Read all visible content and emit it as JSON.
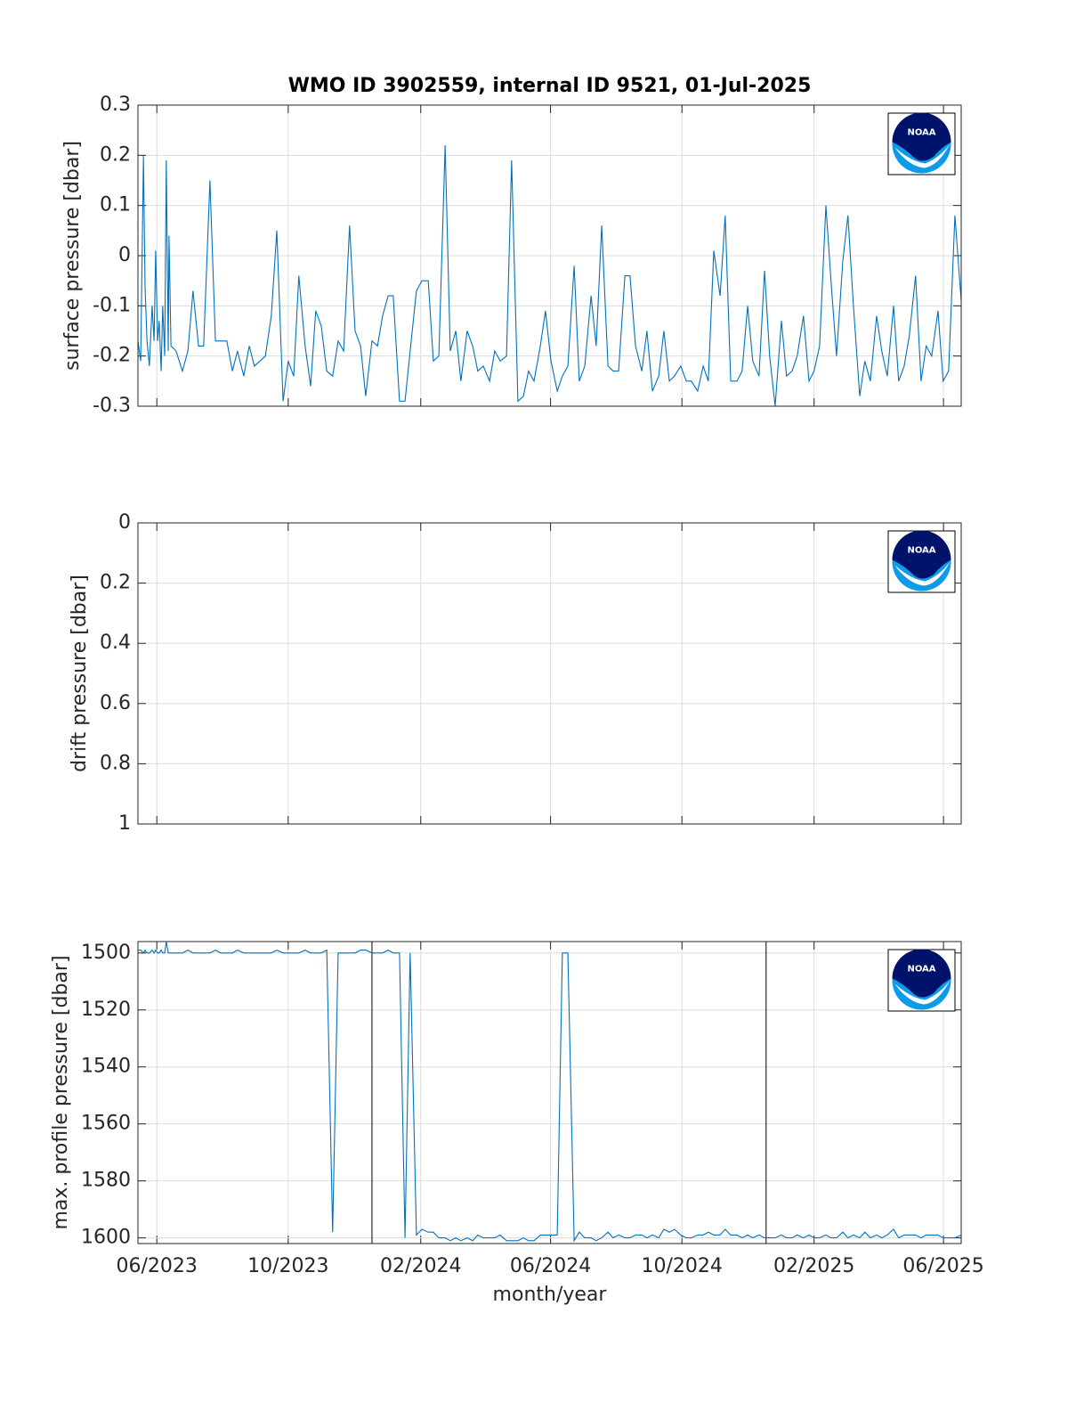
{
  "logo": "NOAA",
  "chart_data": [
    {
      "type": "line",
      "title": "WMO ID 3902559, internal ID 9521, 01-Jul-2025",
      "ylabel": "surface pressure [dbar]",
      "x": [
        2023.366,
        2023.373,
        2023.38,
        2023.384,
        2023.389,
        2023.395,
        2023.402,
        2023.407,
        2023.411,
        2023.416,
        2023.42,
        2023.425,
        2023.429,
        2023.434,
        2023.438,
        2023.443,
        2023.445,
        2023.45,
        2023.463,
        2023.479,
        2023.493,
        2023.506,
        2023.52,
        2023.533,
        2023.549,
        2023.563,
        2023.576,
        2023.592,
        2023.606,
        2023.619,
        2023.635,
        2023.649,
        2023.662,
        2023.69,
        2023.705,
        2023.719,
        2023.735,
        2023.748,
        2023.762,
        2023.775,
        2023.791,
        2023.805,
        2023.818,
        2023.832,
        2023.846,
        2023.861,
        2023.875,
        2023.889,
        2023.904,
        2023.918,
        2023.932,
        2023.945,
        2023.961,
        2023.975,
        2023.988,
        2024.002,
        2024.015,
        2024.031,
        2024.045,
        2024.058,
        2024.074,
        2024.088,
        2024.104,
        2024.117,
        2024.131,
        2024.147,
        2024.16,
        2024.174,
        2024.187,
        2024.203,
        2024.217,
        2024.23,
        2024.244,
        2024.26,
        2024.273,
        2024.287,
        2024.303,
        2024.316,
        2024.332,
        2024.346,
        2024.359,
        2024.373,
        2024.389,
        2024.402,
        2024.416,
        2024.432,
        2024.445,
        2024.459,
        2024.475,
        2024.488,
        2024.502,
        2024.518,
        2024.531,
        2024.545,
        2024.561,
        2024.574,
        2024.588,
        2024.604,
        2024.617,
        2024.631,
        2024.647,
        2024.66,
        2024.674,
        2024.69,
        2024.703,
        2024.717,
        2024.73,
        2024.746,
        2024.76,
        2024.773,
        2024.789,
        2024.803,
        2024.816,
        2024.83,
        2024.846,
        2024.859,
        2024.873,
        2024.889,
        2024.902,
        2024.916,
        2024.929,
        2024.945,
        2024.959,
        2024.972,
        2024.986,
        2025.002,
        2025.015,
        2025.029,
        2025.042,
        2025.058,
        2025.072,
        2025.085,
        2025.099,
        2025.115,
        2025.128,
        2025.142,
        2025.158,
        2025.171,
        2025.185,
        2025.201,
        2025.214,
        2025.228,
        2025.244,
        2025.257,
        2025.271,
        2025.287,
        2025.3,
        2025.314,
        2025.327,
        2025.343,
        2025.357,
        2025.37,
        2025.384,
        2025.4,
        2025.413,
        2025.427,
        2025.443,
        2025.459
      ],
      "series": [
        {
          "color": "#0072bd",
          "values": [
            -0.17,
            -0.21,
            0.2,
            -0.06,
            -0.17,
            -0.22,
            -0.1,
            -0.17,
            0.01,
            -0.17,
            -0.13,
            -0.23,
            -0.1,
            -0.2,
            0.19,
            -0.19,
            0.04,
            -0.18,
            -0.19,
            -0.23,
            -0.19,
            -0.07,
            -0.18,
            -0.18,
            0.15,
            -0.17,
            -0.17,
            -0.17,
            -0.23,
            -0.19,
            -0.24,
            -0.18,
            -0.22,
            -0.2,
            -0.12,
            0.05,
            -0.29,
            -0.21,
            -0.24,
            -0.04,
            -0.18,
            -0.26,
            -0.11,
            -0.14,
            -0.23,
            -0.24,
            -0.17,
            -0.19,
            0.06,
            -0.15,
            -0.18,
            -0.28,
            -0.17,
            -0.18,
            -0.12,
            -0.08,
            -0.08,
            -0.29,
            -0.29,
            -0.19,
            -0.07,
            -0.05,
            -0.05,
            -0.21,
            -0.2,
            0.22,
            -0.19,
            -0.15,
            -0.25,
            -0.15,
            -0.18,
            -0.23,
            -0.22,
            -0.25,
            -0.19,
            -0.21,
            -0.2,
            0.19,
            -0.29,
            -0.28,
            -0.23,
            -0.25,
            -0.18,
            -0.11,
            -0.21,
            -0.27,
            -0.24,
            -0.22,
            -0.02,
            -0.25,
            -0.22,
            -0.08,
            -0.18,
            0.06,
            -0.22,
            -0.23,
            -0.23,
            -0.04,
            -0.04,
            -0.18,
            -0.23,
            -0.15,
            -0.27,
            -0.24,
            -0.15,
            -0.25,
            -0.24,
            -0.22,
            -0.25,
            -0.25,
            -0.27,
            -0.22,
            -0.25,
            0.01,
            -0.08,
            0.08,
            -0.25,
            -0.25,
            -0.23,
            -0.1,
            -0.21,
            -0.24,
            -0.03,
            -0.2,
            -0.3,
            -0.13,
            -0.24,
            -0.23,
            -0.2,
            -0.12,
            -0.25,
            -0.23,
            -0.18,
            0.1,
            -0.05,
            -0.2,
            -0.01,
            0.08,
            -0.1,
            -0.28,
            -0.21,
            -0.25,
            -0.12,
            -0.19,
            -0.24,
            -0.1,
            -0.25,
            -0.22,
            -0.16,
            -0.04,
            -0.25,
            -0.18,
            -0.2,
            -0.11,
            -0.25,
            -0.23,
            0.08,
            -0.09
          ]
        }
      ],
      "xlim": [
        2023.366,
        2025.459
      ],
      "xticks": [
        2023.414,
        2023.748,
        2024.085,
        2024.415,
        2024.749,
        2025.085,
        2025.414
      ],
      "ylim": [
        -0.3,
        0.3
      ],
      "yticks": [
        -0.3,
        -0.2,
        -0.1,
        0,
        0.1,
        0.2,
        0.3
      ],
      "grid": true
    },
    {
      "type": "line",
      "ylabel": "drift pressure [dbar]",
      "xlim": [
        2023.366,
        2025.459
      ],
      "xticks": [
        2023.414,
        2023.748,
        2024.085,
        2024.415,
        2024.749,
        2025.085,
        2025.414
      ],
      "ylim": [
        0,
        1
      ],
      "yticks": [
        0,
        0.2,
        0.4,
        0.6,
        0.8,
        1
      ],
      "y_reverse": true,
      "grid": true
    },
    {
      "type": "line",
      "ylabel": "max. profile pressure [dbar]",
      "xlabel": "month/year",
      "x": [
        2023.366,
        2023.373,
        2023.38,
        2023.384,
        2023.389,
        2023.395,
        2023.402,
        2023.407,
        2023.411,
        2023.416,
        2023.42,
        2023.425,
        2023.429,
        2023.434,
        2023.438,
        2023.443,
        2023.445,
        2023.45,
        2023.463,
        2023.479,
        2023.493,
        2023.506,
        2023.52,
        2023.533,
        2023.549,
        2023.563,
        2023.576,
        2023.592,
        2023.606,
        2023.619,
        2023.635,
        2023.649,
        2023.662,
        2023.69,
        2023.705,
        2023.719,
        2023.735,
        2023.748,
        2023.762,
        2023.775,
        2023.791,
        2023.805,
        2023.818,
        2023.832,
        2023.846,
        2023.861,
        2023.875,
        2023.889,
        2023.904,
        2023.918,
        2023.932,
        2023.945,
        2023.961,
        2023.975,
        2023.988,
        2024.002,
        2024.015,
        2024.031,
        2024.045,
        2024.058,
        2024.074,
        2024.088,
        2024.104,
        2024.117,
        2024.131,
        2024.147,
        2024.16,
        2024.174,
        2024.187,
        2024.203,
        2024.217,
        2024.23,
        2024.244,
        2024.26,
        2024.273,
        2024.287,
        2024.303,
        2024.316,
        2024.332,
        2024.346,
        2024.359,
        2024.373,
        2024.389,
        2024.402,
        2024.416,
        2024.432,
        2024.445,
        2024.459,
        2024.475,
        2024.488,
        2024.502,
        2024.518,
        2024.531,
        2024.545,
        2024.561,
        2024.574,
        2024.588,
        2024.604,
        2024.617,
        2024.631,
        2024.647,
        2024.66,
        2024.674,
        2024.69,
        2024.703,
        2024.717,
        2024.73,
        2024.746,
        2024.76,
        2024.773,
        2024.789,
        2024.803,
        2024.816,
        2024.83,
        2024.846,
        2024.859,
        2024.873,
        2024.889,
        2024.902,
        2024.916,
        2024.929,
        2024.945,
        2024.959,
        2024.972,
        2024.986,
        2025.002,
        2025.015,
        2025.029,
        2025.042,
        2025.058,
        2025.072,
        2025.085,
        2025.099,
        2025.115,
        2025.128,
        2025.142,
        2025.158,
        2025.171,
        2025.185,
        2025.201,
        2025.214,
        2025.228,
        2025.244,
        2025.257,
        2025.271,
        2025.287,
        2025.3,
        2025.314,
        2025.327,
        2025.343,
        2025.357,
        2025.37,
        2025.384,
        2025.4,
        2025.413,
        2025.427,
        2025.443,
        2025.459
      ],
      "series": [
        {
          "color": "#0072bd",
          "values": [
            1499,
            1499,
            1500,
            1499,
            1500,
            1500,
            1499,
            1500,
            1499,
            1500,
            1500,
            1499,
            1500,
            1500,
            1496,
            1500,
            1500,
            1500,
            1500,
            1500,
            1499,
            1500,
            1500,
            1500,
            1500,
            1499,
            1500,
            1500,
            1500,
            1499,
            1500,
            1500,
            1500,
            1500,
            1500,
            1499,
            1500,
            1500,
            1500,
            1500,
            1499,
            1500,
            1500,
            1500,
            1499,
            1598,
            1500,
            1500,
            1500,
            1500,
            1499,
            1499,
            1500,
            1500,
            1500,
            1499,
            1500,
            1500,
            1600,
            1500,
            1599,
            1597,
            1598,
            1598,
            1600,
            1600,
            1601,
            1600,
            1601,
            1600,
            1601,
            1599,
            1600,
            1600,
            1600,
            1599,
            1601,
            1601,
            1601,
            1600,
            1601,
            1601,
            1599,
            1599,
            1599,
            1599,
            1500,
            1500,
            1601,
            1598,
            1600,
            1600,
            1601,
            1600,
            1598,
            1600,
            1599,
            1600,
            1600,
            1599,
            1599,
            1600,
            1599,
            1600,
            1597,
            1598,
            1597,
            1599,
            1600,
            1600,
            1599,
            1599,
            1598,
            1599,
            1599,
            1597,
            1599,
            1599,
            1600,
            1599,
            1600,
            1599,
            1600,
            1600,
            1600,
            1599,
            1600,
            1600,
            1599,
            1600,
            1599,
            1600,
            1600,
            1599,
            1600,
            1600,
            1598,
            1600,
            1599,
            1600,
            1598,
            1600,
            1599,
            1600,
            1599,
            1597,
            1600,
            1599,
            1599,
            1599,
            1600,
            1599,
            1599,
            1599,
            1600,
            1600,
            1600,
            1599
          ]
        }
      ],
      "xlim": [
        2023.366,
        2025.459
      ],
      "xticks": [
        {
          "value": 2023.414,
          "label": "06/2023"
        },
        {
          "value": 2023.748,
          "label": "10/2023"
        },
        {
          "value": 2024.085,
          "label": "02/2024"
        },
        {
          "value": 2024.415,
          "label": "06/2024"
        },
        {
          "value": 2024.749,
          "label": "10/2024"
        },
        {
          "value": 2025.085,
          "label": "02/2025"
        },
        {
          "value": 2025.414,
          "label": "06/2025"
        }
      ],
      "xlines": [
        2023.961,
        2024.963
      ],
      "xlines_color": "#000000",
      "ylim": [
        1496,
        1602
      ],
      "yticks": [
        1500,
        1520,
        1540,
        1560,
        1580,
        1600
      ],
      "y_reverse": true,
      "grid": true
    }
  ]
}
